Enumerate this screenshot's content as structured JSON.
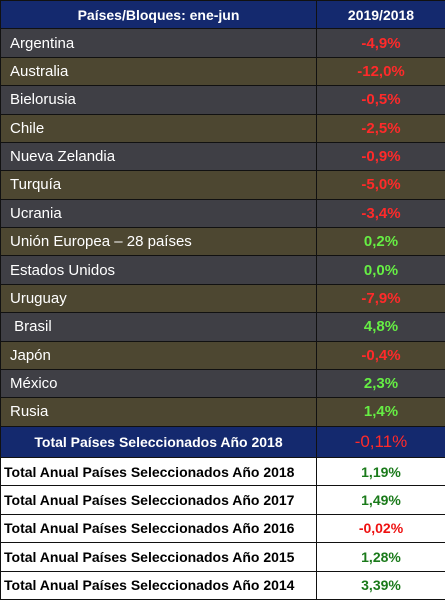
{
  "header": {
    "col1": "Países/Bloques: ene-jun",
    "col2": "2019/2018"
  },
  "rows": [
    {
      "name": "Argentina",
      "value": "-4,9%",
      "sign": "neg"
    },
    {
      "name": "Australia",
      "value": "-12,0%",
      "sign": "neg"
    },
    {
      "name": "Bielorusia",
      "value": "-0,5%",
      "sign": "neg"
    },
    {
      "name": "Chile",
      "value": "-2,5%",
      "sign": "neg"
    },
    {
      "name": "Nueva Zelandia",
      "value": "-0,9%",
      "sign": "neg"
    },
    {
      "name": "Turquía",
      "value": "-5,0%",
      "sign": "neg"
    },
    {
      "name": "Ucrania",
      "value": "-3,4%",
      "sign": "neg"
    },
    {
      "name": "Unión Europea – 28 países",
      "value": "0,2%",
      "sign": "pos"
    },
    {
      "name": "Estados Unidos",
      "value": "0,0%",
      "sign": "pos"
    },
    {
      "name": "Uruguay",
      "value": "-7,9%",
      "sign": "neg"
    },
    {
      "name": " Brasil",
      "value": "4,8%",
      "sign": "pos"
    },
    {
      "name": "Japón",
      "value": "-0,4%",
      "sign": "neg"
    },
    {
      "name": "México",
      "value": "2,3%",
      "sign": "pos"
    },
    {
      "name": "Rusia",
      "value": "1,4%",
      "sign": "pos"
    }
  ],
  "total": {
    "label": "Total Países Seleccionados Año 2018",
    "value": "-0,11%"
  },
  "annual": [
    {
      "label": "Total Anual Países Seleccionados Año 2018",
      "value": "1,19%",
      "sign": "pos"
    },
    {
      "label": "Total Anual Países Seleccionados Año 2017",
      "value": "1,49%",
      "sign": "pos"
    },
    {
      "label": "Total Anual Países Seleccionados Año 2016",
      "value": "-0,02%",
      "sign": "neg"
    },
    {
      "label": "Total Anual Países Seleccionados Año 2015",
      "value": "1,28%",
      "sign": "pos"
    },
    {
      "label": "Total Anual Países Seleccionados Año 2014",
      "value": "3,39%",
      "sign": "pos"
    }
  ],
  "colors": {
    "header_bg": "#14296e",
    "row_gray": "#3f3f45",
    "row_olive": "#4d4731",
    "negative": "#ff2a2a",
    "positive": "#66ee44",
    "annual_positive": "#1a7a1a",
    "annual_negative": "#ee1111"
  }
}
